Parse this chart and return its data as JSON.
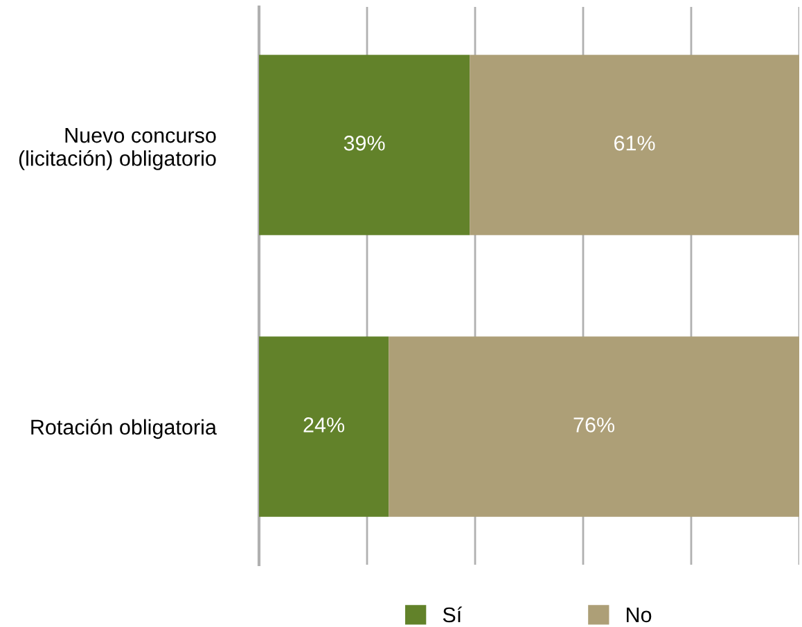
{
  "chart_data": {
    "type": "bar",
    "orientation": "horizontal",
    "stacked": true,
    "categories": [
      "Nuevo concurso\n(licitación) obligatorio",
      "Rotación obligatoria"
    ],
    "series": [
      {
        "name": "Sí",
        "color": "#62822a",
        "values": [
          39,
          24
        ],
        "value_labels": [
          "39%",
          "24%"
        ]
      },
      {
        "name": "No",
        "color": "#ad9f77",
        "values": [
          61,
          76
        ],
        "value_labels": [
          "61%",
          "76%"
        ]
      }
    ],
    "tick_labels": "y",
    "grid": "x",
    "legend": "bottom"
  }
}
